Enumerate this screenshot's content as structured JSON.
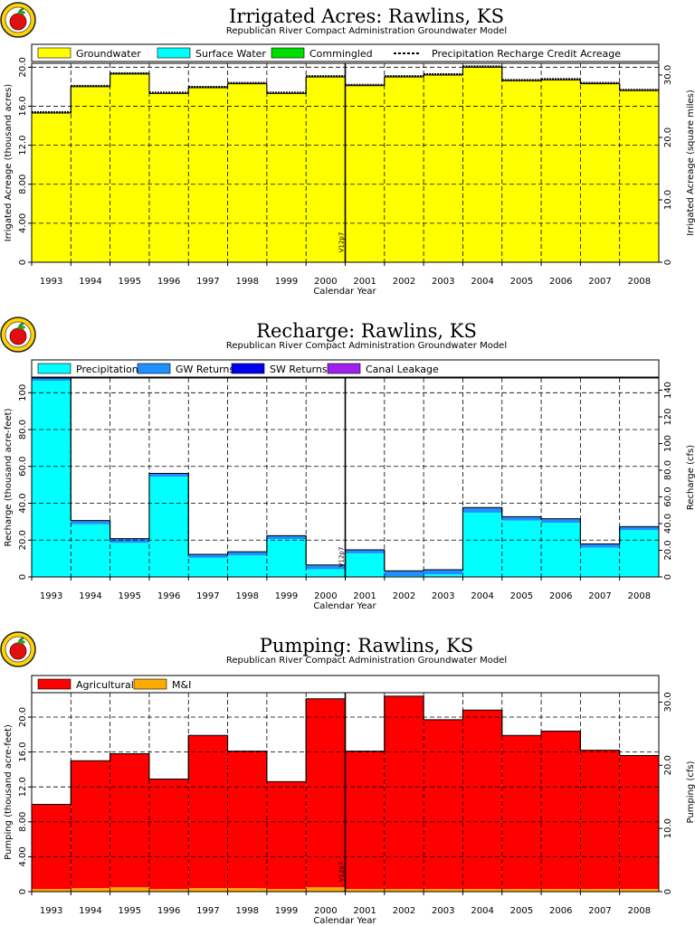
{
  "chart_data": [
    {
      "type": "area",
      "title": "Irrigated Acres: Rawlins, KS",
      "subtitle": "Republican River Compact Administration Groundwater Model",
      "xlabel": "Calendar Year",
      "ylabel": "Irrigated Acreage (thousand acres)",
      "y2label": "Irrigated Acreage (square miles)",
      "categories": [
        "1993",
        "1994",
        "1995",
        "1996",
        "1997",
        "1998",
        "1999",
        "2000",
        "2001",
        "2002",
        "2003",
        "2004",
        "2005",
        "2006",
        "2007",
        "2008"
      ],
      "series": [
        {
          "name": "Groundwater",
          "color": "#ffff00",
          "values": [
            15.3,
            18.0,
            19.3,
            17.3,
            17.9,
            18.3,
            17.3,
            19.0,
            18.1,
            19.0,
            19.2,
            20.0,
            18.6,
            18.7,
            18.3,
            17.6
          ]
        },
        {
          "name": "Surface Water",
          "color": "#00ffff",
          "values": [
            0,
            0,
            0,
            0,
            0,
            0,
            0,
            0,
            0,
            0,
            0,
            0,
            0,
            0,
            0,
            0
          ]
        },
        {
          "name": "Commingled",
          "color": "#00dd00",
          "values": [
            0,
            0,
            0,
            0,
            0,
            0,
            0,
            0,
            0,
            0,
            0,
            0,
            0,
            0,
            0,
            0
          ]
        }
      ],
      "line_series": {
        "name": "Precipitation Recharge Credit Acreage",
        "values": [
          15.3,
          18.0,
          19.3,
          17.3,
          17.9,
          18.3,
          17.3,
          19.0,
          18.1,
          19.0,
          19.2,
          20.0,
          18.6,
          18.7,
          18.3,
          17.6
        ]
      },
      "ylim": [
        0,
        20.4
      ],
      "yticks": [
        0,
        4.0,
        8.0,
        12.0,
        16.0,
        20.0
      ],
      "yticklabels": [
        "0",
        "4.00",
        "8.00",
        "12.0",
        "16.0",
        "20.0"
      ],
      "y2ticks": [
        0,
        10.0,
        20.0,
        30.0
      ],
      "y2ticklabels": [
        "0",
        "10.0",
        "20.0",
        "30.0"
      ],
      "y2_per_y": 1.5625,
      "marker": {
        "label": "V12p7",
        "after_index": 7
      },
      "grid": true,
      "legend": "top"
    },
    {
      "type": "area",
      "title": "Recharge: Rawlins, KS",
      "subtitle": "Republican River Compact Administration Groundwater Model",
      "xlabel": "Calendar Year",
      "ylabel": "Recharge (thousand acre-feet)",
      "y2label": "Recharge (cfs)",
      "categories": [
        "1993",
        "1994",
        "1995",
        "1996",
        "1997",
        "1998",
        "1999",
        "2000",
        "2001",
        "2002",
        "2003",
        "2004",
        "2005",
        "2006",
        "2007",
        "2008"
      ],
      "series": [
        {
          "name": "Precipitation",
          "color": "#00ffff",
          "values": [
            106.5,
            28.6,
            18.5,
            54.4,
            10.4,
            11.7,
            20.6,
            4.2,
            12.8,
            0.5,
            1.4,
            34.9,
            30.6,
            29.4,
            15.9,
            25.4
          ]
        },
        {
          "name": "GW Returns",
          "color": "#1e90ff",
          "values": [
            1.5,
            2.0,
            2.3,
            1.8,
            1.9,
            2.0,
            1.8,
            2.3,
            1.9,
            2.8,
            2.5,
            2.8,
            2.1,
            2.2,
            2.0,
            1.9
          ]
        },
        {
          "name": "SW Returns",
          "color": "#0000ee",
          "values": [
            0,
            0,
            0,
            0,
            0,
            0,
            0,
            0,
            0,
            0,
            0,
            0,
            0,
            0,
            0,
            0
          ]
        },
        {
          "name": "Canal Leakage",
          "color": "#a020f0",
          "values": [
            0,
            0,
            0,
            0,
            0,
            0,
            0,
            0,
            0,
            0,
            0,
            0,
            0,
            0,
            0,
            0
          ]
        }
      ],
      "ylim": [
        0,
        108
      ],
      "yticks": [
        0,
        20.0,
        40.0,
        60.0,
        80.0,
        100
      ],
      "yticklabels": [
        "0",
        "20.0",
        "40.0",
        "60.0",
        "80.0",
        "100"
      ],
      "y2ticks": [
        0,
        20.0,
        40.0,
        60.0,
        80.0,
        100,
        120,
        140
      ],
      "y2ticklabels": [
        "0",
        "20.0",
        "40.0",
        "60.0",
        "80.0",
        "100",
        "120",
        "140"
      ],
      "y2_per_y": 1.381,
      "marker": {
        "label": "V12p7",
        "after_index": 7
      },
      "grid": true,
      "legend": "top"
    },
    {
      "type": "area",
      "title": "Pumping: Rawlins, KS",
      "subtitle": "Republican River Compact Administration Groundwater Model",
      "xlabel": "Calendar Year",
      "ylabel": "Pumping (thousand acre-feet)",
      "y2label": "Pumping (cfs)",
      "categories": [
        "1993",
        "1994",
        "1995",
        "1996",
        "1997",
        "1998",
        "1999",
        "2000",
        "2001",
        "2002",
        "2003",
        "2004",
        "2005",
        "2006",
        "2007",
        "2008"
      ],
      "series": [
        {
          "name": "M&I",
          "color": "#ffaa00",
          "values": [
            0.3,
            0.4,
            0.5,
            0.3,
            0.4,
            0.4,
            0.3,
            0.5,
            0.3,
            0.3,
            0.3,
            0.3,
            0.3,
            0.3,
            0.3,
            0.3
          ]
        },
        {
          "name": "Agricultural",
          "color": "#ff0000",
          "values": [
            9.7,
            14.6,
            15.3,
            12.6,
            17.5,
            15.7,
            12.3,
            21.6,
            15.8,
            22.1,
            19.4,
            20.5,
            17.6,
            18.1,
            15.9,
            15.3
          ]
        }
      ],
      "ylim": [
        0,
        22.8
      ],
      "yticks": [
        0,
        4.0,
        8.0,
        12.0,
        16.0,
        20.0
      ],
      "yticklabels": [
        "0",
        "4.00",
        "8.00",
        "12.0",
        "16.0",
        "20.0"
      ],
      "y2ticks": [
        0,
        10.0,
        20.0,
        30.0
      ],
      "y2ticklabels": [
        "0",
        "10.0",
        "20.0",
        "30.0"
      ],
      "y2_per_y": 1.381,
      "marker": {
        "label": "V12p7",
        "after_index": 7
      },
      "grid": true,
      "legend": "top"
    }
  ]
}
